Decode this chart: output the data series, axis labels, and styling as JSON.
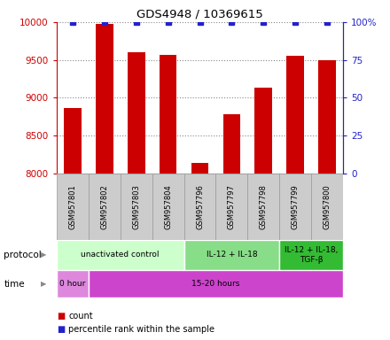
{
  "title": "GDS4948 / 10369615",
  "samples": [
    "GSM957801",
    "GSM957802",
    "GSM957803",
    "GSM957804",
    "GSM957796",
    "GSM957797",
    "GSM957798",
    "GSM957799",
    "GSM957800"
  ],
  "counts": [
    8870,
    9980,
    9600,
    9570,
    8140,
    8780,
    9130,
    9560,
    9500
  ],
  "percentile_ranks": [
    100,
    100,
    100,
    100,
    100,
    100,
    100,
    100,
    100
  ],
  "ylim_left": [
    8000,
    10000
  ],
  "ylim_right": [
    0,
    100
  ],
  "yticks_left": [
    8000,
    8500,
    9000,
    9500,
    10000
  ],
  "yticks_right": [
    0,
    25,
    50,
    75,
    100
  ],
  "bar_color": "#cc0000",
  "marker_color": "#2222cc",
  "protocol_groups": [
    {
      "label": "unactivated control",
      "start": 0,
      "end": 4,
      "color": "#ccffcc"
    },
    {
      "label": "IL-12 + IL-18",
      "start": 4,
      "end": 7,
      "color": "#88dd88"
    },
    {
      "label": "IL-12 + IL-18,\nTGF-β",
      "start": 7,
      "end": 9,
      "color": "#33bb33"
    }
  ],
  "time_groups": [
    {
      "label": "0 hour",
      "start": 0,
      "end": 1,
      "color": "#dd88dd"
    },
    {
      "label": "15-20 hours",
      "start": 1,
      "end": 9,
      "color": "#cc44cc"
    }
  ],
  "grid_color": "#888888",
  "left_tick_color": "#cc0000",
  "right_tick_color": "#2222cc",
  "sample_box_color": "#cccccc",
  "sample_box_edge": "#999999"
}
